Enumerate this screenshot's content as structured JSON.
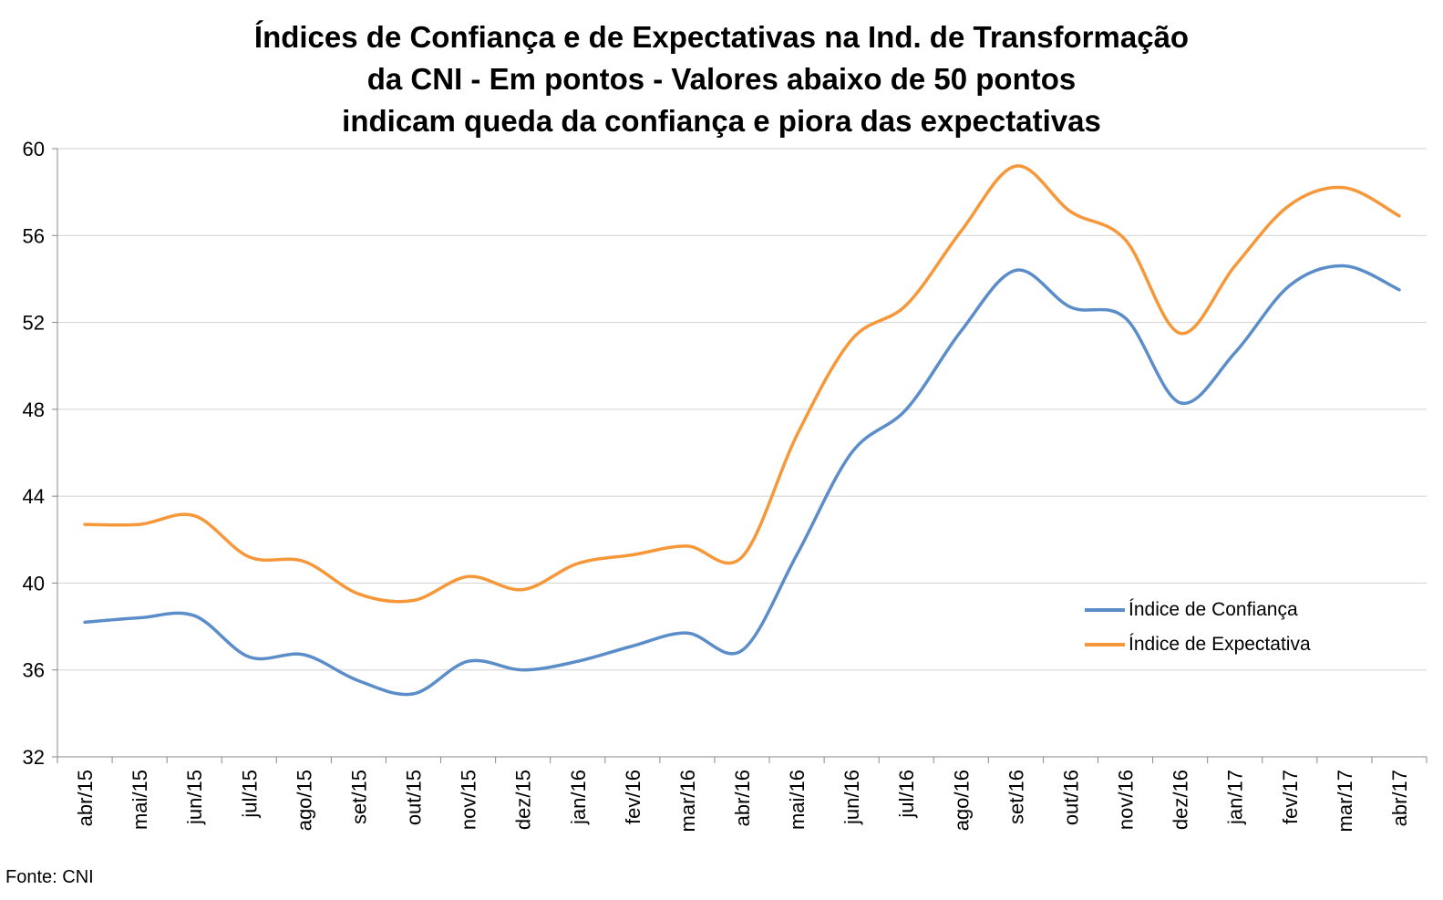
{
  "chart_data": {
    "type": "line",
    "title": [
      "Índices de Confiança e de Expectativas na Ind. de Transformação",
      "da CNI - Em pontos - Valores abaixo de 50 pontos",
      "indicam queda da confiança e piora das expectativas"
    ],
    "categories": [
      "abr/15",
      "mai/15",
      "jun/15",
      "jul/15",
      "ago/15",
      "set/15",
      "out/15",
      "nov/15",
      "dez/15",
      "jan/16",
      "fev/16",
      "mar/16",
      "abr/16",
      "mai/16",
      "jun/16",
      "jul/16",
      "ago/16",
      "set/16",
      "out/16",
      "nov/16",
      "dez/16",
      "jan/17",
      "fev/17",
      "mar/17",
      "abr/17"
    ],
    "series": [
      {
        "name": "Índice de Confiança",
        "color": "#5B8DC9",
        "values": [
          38.2,
          38.4,
          38.5,
          36.6,
          36.7,
          35.5,
          34.9,
          36.4,
          36.0,
          36.4,
          37.1,
          37.7,
          36.9,
          41.3,
          46.0,
          48.0,
          51.6,
          54.4,
          52.7,
          52.2,
          48.3,
          50.6,
          53.7,
          54.6,
          53.5
        ]
      },
      {
        "name": "Índice de Expectativa",
        "color": "#F6983A",
        "values": [
          42.7,
          42.7,
          43.1,
          41.2,
          41.0,
          39.5,
          39.2,
          40.3,
          39.7,
          40.9,
          41.3,
          41.7,
          41.2,
          46.8,
          51.2,
          52.8,
          56.2,
          59.2,
          57.1,
          55.8,
          51.5,
          54.6,
          57.4,
          58.2,
          56.9
        ]
      }
    ],
    "yticks": [
      32,
      36,
      40,
      44,
      48,
      52,
      56,
      60
    ],
    "ylim": [
      32,
      60
    ],
    "grid": true,
    "legend_position": "right-center"
  },
  "source_text": "Fonte: CNI"
}
